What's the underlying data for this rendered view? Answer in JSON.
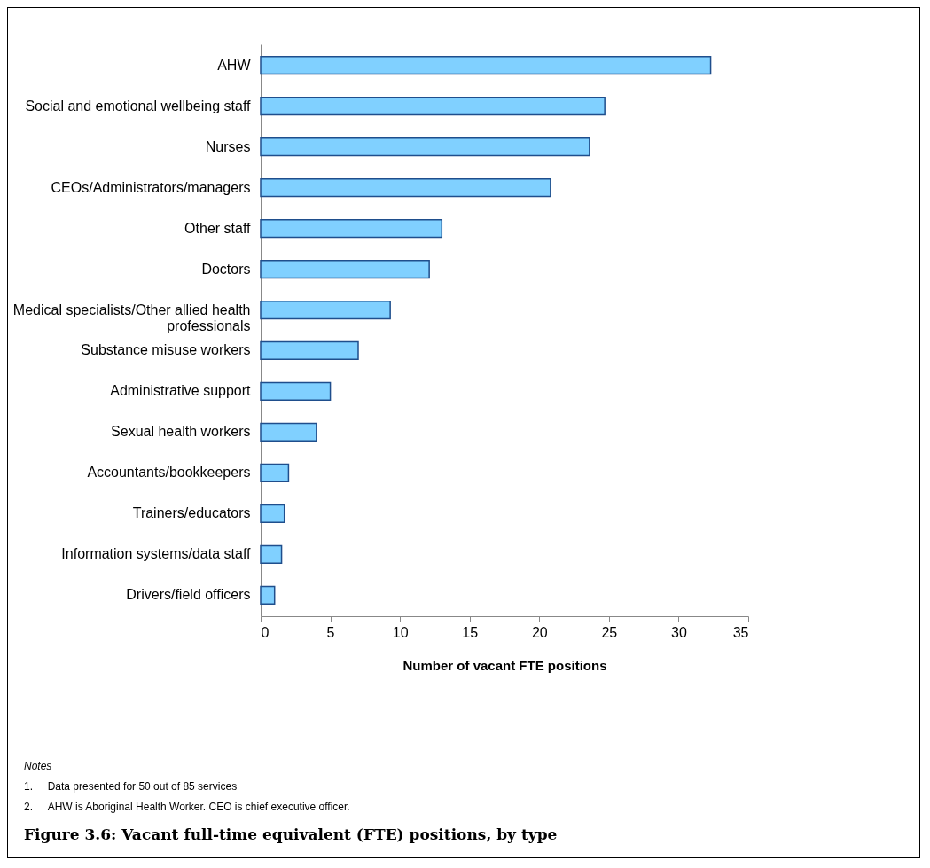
{
  "chart_data": {
    "type": "bar",
    "orientation": "horizontal",
    "title": "Figure 3.6: Vacant full-time equivalent (FTE) positions, by type",
    "xlabel": "Number of vacant FTE positions",
    "categories": [
      "AHW",
      "Social and emotional wellbeing staff",
      "Nurses",
      "CEOs/Administrators/managers",
      "Other staff",
      "Doctors",
      "Medical specialists/Other allied health professionals",
      "Substance misuse workers",
      "Administrative support",
      "Sexual health workers",
      "Accountants/bookkeepers",
      "Trainers/educators",
      "Information systems/data staff",
      "Drivers/field officers"
    ],
    "values": [
      32.3,
      24.7,
      23.6,
      20.8,
      13.0,
      12.1,
      9.3,
      7.0,
      5.0,
      4.0,
      2.0,
      1.7,
      1.5,
      1.0
    ],
    "color": "#80d0ff",
    "xlim": [
      0,
      35
    ],
    "xticks": [
      0,
      5,
      10,
      15,
      20,
      25,
      30,
      35
    ],
    "grid": false,
    "annotations": [
      "Notes",
      "1.\tData presented for 50 out of 85 services",
      "2.\tAHW is Aboriginal Health Worker. CEO is chief executive officer."
    ]
  }
}
